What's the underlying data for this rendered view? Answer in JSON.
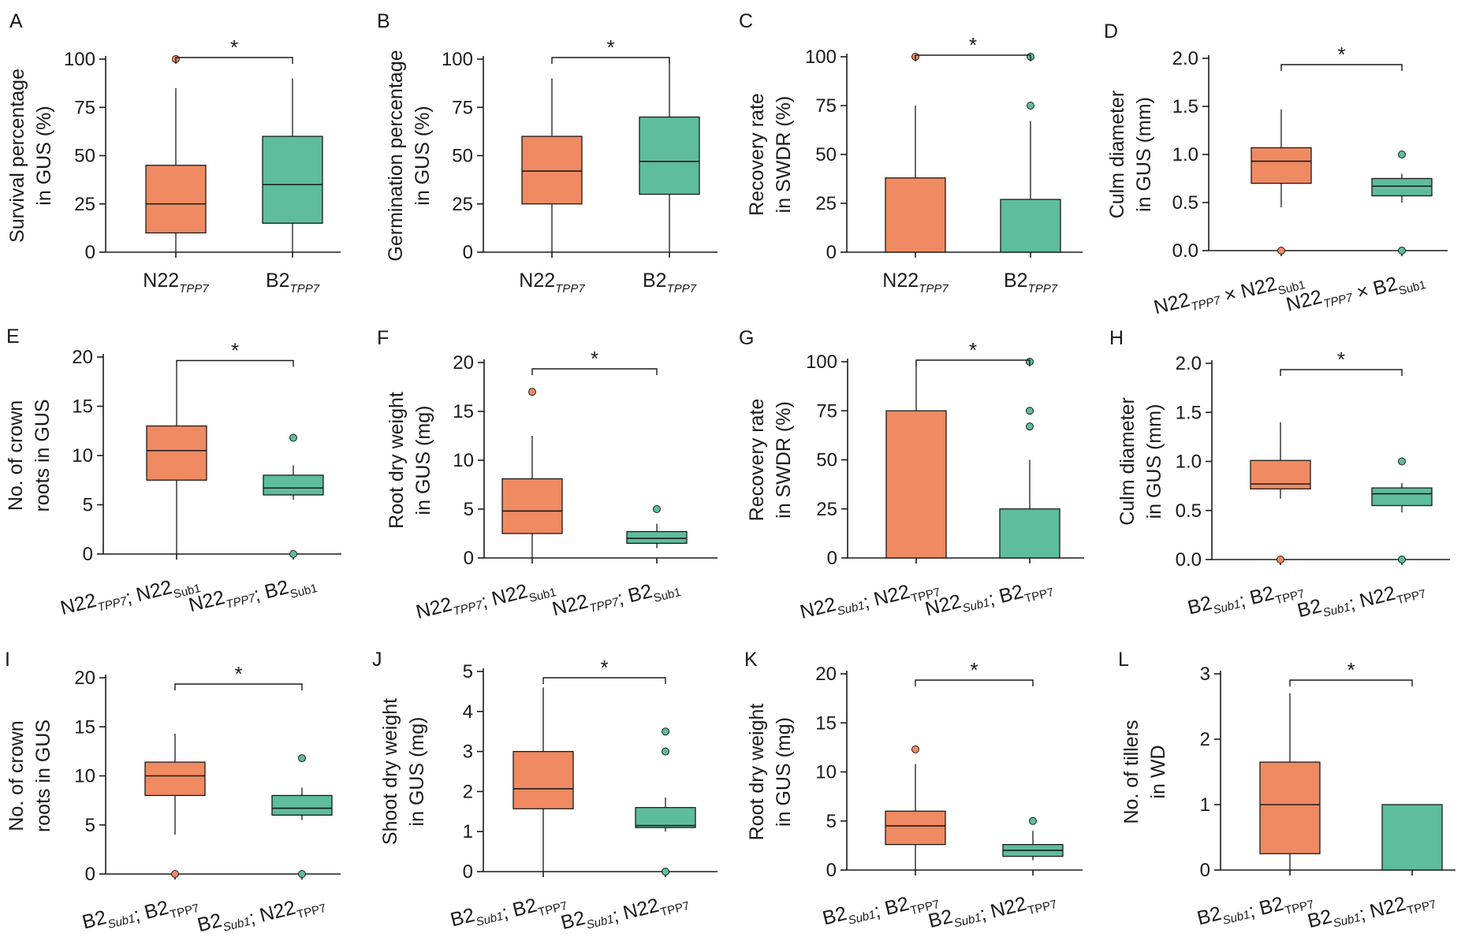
{
  "colors": {
    "group1": "#ef8a62",
    "group2": "#5ebd9c"
  },
  "chart_data": [
    {
      "label": "A",
      "type": "box",
      "ylabel": [
        "Survival percentage",
        "in GUS (%)"
      ],
      "ylim": [
        0,
        100
      ],
      "yticks": [
        0,
        25,
        50,
        75,
        100
      ],
      "tick_format": "int",
      "categories": [
        [
          {
            "t": "N22"
          },
          {
            "t": "TPP7",
            "s": "sub",
            "i": true
          }
        ],
        [
          {
            "t": "B2"
          },
          {
            "t": "TPP7",
            "s": "sub",
            "i": true
          }
        ]
      ],
      "rotate_labels": false,
      "significance": "*",
      "boxes": [
        {
          "whislo": 0,
          "q1": 10,
          "med": 25,
          "q3": 45,
          "whishi": 85,
          "fliers": [
            100
          ]
        },
        {
          "whislo": 0,
          "q1": 15,
          "med": 35,
          "q3": 60,
          "whishi": 90,
          "fliers": []
        }
      ]
    },
    {
      "label": "B",
      "type": "box",
      "ylabel": [
        "Germination percentage",
        "in GUS (%)"
      ],
      "ylim": [
        0,
        100
      ],
      "yticks": [
        0,
        25,
        50,
        75,
        100
      ],
      "tick_format": "int",
      "categories": [
        [
          {
            "t": "N22"
          },
          {
            "t": "TPP7",
            "s": "sub",
            "i": true
          }
        ],
        [
          {
            "t": "B2"
          },
          {
            "t": "TPP7",
            "s": "sub",
            "i": true
          }
        ]
      ],
      "rotate_labels": false,
      "significance": "*",
      "boxes": [
        {
          "whislo": 0,
          "q1": 25,
          "med": 42,
          "q3": 60,
          "whishi": 90,
          "fliers": []
        },
        {
          "whislo": 0,
          "q1": 30,
          "med": 47,
          "q3": 70,
          "whishi": 100,
          "fliers": []
        }
      ]
    },
    {
      "label": "C",
      "type": "box",
      "ylabel": [
        "Recovery rate",
        "in SWDR (%)"
      ],
      "ylim": [
        0,
        100
      ],
      "yticks": [
        0,
        25,
        50,
        75,
        100
      ],
      "tick_format": "int",
      "categories": [
        [
          {
            "t": "N22"
          },
          {
            "t": "TPP7",
            "s": "sub",
            "i": true
          }
        ],
        [
          {
            "t": "B2"
          },
          {
            "t": "TPP7",
            "s": "sub",
            "i": true
          }
        ]
      ],
      "rotate_labels": false,
      "significance": "*",
      "boxes": [
        {
          "whislo": 0,
          "q1": 0,
          "med": 0,
          "q3": 38,
          "whishi": 75,
          "fliers": [
            100
          ]
        },
        {
          "whislo": 0,
          "q1": 0,
          "med": 0,
          "q3": 27,
          "whishi": 67,
          "fliers": [
            75,
            100
          ]
        }
      ]
    },
    {
      "label": "D",
      "type": "box",
      "ylabel": [
        "Culm diameter",
        "in GUS (mm)"
      ],
      "ylim": [
        0,
        2
      ],
      "yticks": [
        0,
        0.5,
        1.0,
        1.5,
        2.0
      ],
      "tick_format": "one",
      "categories": [
        [
          {
            "t": "N22"
          },
          {
            "t": "TPP7",
            "s": "sub",
            "i": true
          },
          {
            "t": " × N22"
          },
          {
            "t": "Sub1",
            "s": "sub",
            "i": false
          }
        ],
        [
          {
            "t": "N22"
          },
          {
            "t": "TPP7",
            "s": "sub",
            "i": true
          },
          {
            "t": " × B2"
          },
          {
            "t": "Sub1",
            "s": "sub",
            "i": false
          }
        ]
      ],
      "rotate_labels": true,
      "significance": "*",
      "boxes": [
        {
          "whislo": 0.45,
          "q1": 0.7,
          "med": 0.93,
          "q3": 1.07,
          "whishi": 1.47,
          "fliers": [
            0
          ]
        },
        {
          "whislo": 0.5,
          "q1": 0.57,
          "med": 0.67,
          "q3": 0.75,
          "whishi": 0.8,
          "fliers": [
            0,
            1.0
          ]
        }
      ]
    },
    {
      "label": "E",
      "type": "box",
      "ylabel": [
        "No. of crown",
        "roots in GUS"
      ],
      "ylim": [
        0,
        20
      ],
      "yticks": [
        0,
        5,
        10,
        15,
        20
      ],
      "tick_format": "int",
      "categories": [
        [
          {
            "t": "N22"
          },
          {
            "t": "TPP7",
            "s": "sub",
            "i": true
          },
          {
            "t": "; N22"
          },
          {
            "t": "Sub1",
            "s": "sub",
            "i": false
          }
        ],
        [
          {
            "t": "N22"
          },
          {
            "t": "TPP7",
            "s": "sub",
            "i": true
          },
          {
            "t": "; B2"
          },
          {
            "t": "Sub1",
            "s": "sub",
            "i": false
          }
        ]
      ],
      "rotate_labels": true,
      "significance": "*",
      "boxes": [
        {
          "whislo": 0,
          "q1": 7.5,
          "med": 10.5,
          "q3": 13,
          "whishi": 19,
          "fliers": []
        },
        {
          "whislo": 5.5,
          "q1": 6,
          "med": 6.7,
          "q3": 8,
          "whishi": 9,
          "fliers": [
            0,
            11.8
          ]
        }
      ]
    },
    {
      "label": "F",
      "type": "box",
      "ylabel": [
        "Root dry weight",
        "in GUS (mg)"
      ],
      "ylim": [
        0,
        20
      ],
      "yticks": [
        0,
        5,
        10,
        15,
        20
      ],
      "tick_format": "int",
      "categories": [
        [
          {
            "t": "N22"
          },
          {
            "t": "TPP7",
            "s": "sub",
            "i": true
          },
          {
            "t": "; N22"
          },
          {
            "t": "Sub1",
            "s": "sub",
            "i": false
          }
        ],
        [
          {
            "t": "N22"
          },
          {
            "t": "TPP7",
            "s": "sub",
            "i": true
          },
          {
            "t": "; B2"
          },
          {
            "t": "Sub1",
            "s": "sub",
            "i": false
          }
        ]
      ],
      "rotate_labels": true,
      "significance": "*",
      "boxes": [
        {
          "whislo": 0,
          "q1": 2.5,
          "med": 4.8,
          "q3": 8.1,
          "whishi": 12.5,
          "fliers": [
            17
          ]
        },
        {
          "whislo": 1,
          "q1": 1.5,
          "med": 2,
          "q3": 2.7,
          "whishi": 3.5,
          "fliers": [
            5
          ]
        }
      ]
    },
    {
      "label": "G",
      "type": "box",
      "ylabel": [
        "Recovery rate",
        "in SWDR (%)"
      ],
      "ylim": [
        0,
        100
      ],
      "yticks": [
        0,
        25,
        50,
        75,
        100
      ],
      "tick_format": "int",
      "categories": [
        [
          {
            "t": "N22"
          },
          {
            "t": "Sub1",
            "s": "sub",
            "i": true
          },
          {
            "t": "; N22"
          },
          {
            "t": "TPP7",
            "s": "sub",
            "i": false
          }
        ],
        [
          {
            "t": "N22"
          },
          {
            "t": "Sub1",
            "s": "sub",
            "i": true
          },
          {
            "t": "; B2"
          },
          {
            "t": "TPP7",
            "s": "sub",
            "i": false
          }
        ]
      ],
      "rotate_labels": true,
      "significance": "*",
      "boxes": [
        {
          "whislo": 0,
          "q1": 0,
          "med": 0,
          "q3": 75,
          "whishi": 100,
          "fliers": []
        },
        {
          "whislo": 0,
          "q1": 0,
          "med": 0,
          "q3": 25,
          "whishi": 50,
          "fliers": [
            67,
            75,
            100
          ]
        }
      ]
    },
    {
      "label": "H",
      "type": "box",
      "ylabel": [
        "Culm diameter",
        "in GUS (mm)"
      ],
      "ylim": [
        0,
        2
      ],
      "yticks": [
        0,
        0.5,
        1.0,
        1.5,
        2.0
      ],
      "tick_format": "one",
      "categories": [
        [
          {
            "t": "B2"
          },
          {
            "t": "Sub1",
            "s": "sub",
            "i": true
          },
          {
            "t": "; B2"
          },
          {
            "t": "TPP7",
            "s": "sub",
            "i": false
          }
        ],
        [
          {
            "t": "B2"
          },
          {
            "t": "Sub1",
            "s": "sub",
            "i": true
          },
          {
            "t": "; N22"
          },
          {
            "t": "TPP7",
            "s": "sub",
            "i": false
          }
        ]
      ],
      "rotate_labels": true,
      "significance": "*",
      "boxes": [
        {
          "whislo": 0.62,
          "q1": 0.72,
          "med": 0.77,
          "q3": 1.01,
          "whishi": 1.4,
          "fliers": [
            0
          ]
        },
        {
          "whislo": 0.48,
          "q1": 0.55,
          "med": 0.67,
          "q3": 0.73,
          "whishi": 0.78,
          "fliers": [
            0,
            1.0
          ]
        }
      ]
    },
    {
      "label": "I",
      "type": "box",
      "ylabel": [
        "No. of crown",
        "roots in GUS"
      ],
      "ylim": [
        0,
        20
      ],
      "yticks": [
        0,
        5,
        10,
        15,
        20
      ],
      "tick_format": "int",
      "categories": [
        [
          {
            "t": "B2"
          },
          {
            "t": "Sub1",
            "s": "sub",
            "i": true
          },
          {
            "t": "; B2"
          },
          {
            "t": "TPP7",
            "s": "sub",
            "i": false
          }
        ],
        [
          {
            "t": "B2"
          },
          {
            "t": "Sub1",
            "s": "sub",
            "i": true
          },
          {
            "t": "; N22"
          },
          {
            "t": "TPP7",
            "s": "sub",
            "i": false
          }
        ]
      ],
      "rotate_labels": true,
      "significance": "*",
      "boxes": [
        {
          "whislo": 4,
          "q1": 8,
          "med": 10,
          "q3": 11.4,
          "whishi": 14.3,
          "fliers": [
            0
          ]
        },
        {
          "whislo": 5.5,
          "q1": 6,
          "med": 6.7,
          "q3": 8,
          "whishi": 8.8,
          "fliers": [
            0,
            11.8
          ]
        }
      ]
    },
    {
      "label": "J",
      "type": "box",
      "ylabel": [
        "Shoot dry weight",
        "in GUS (mg)"
      ],
      "ylim": [
        0,
        5
      ],
      "yticks": [
        0,
        1,
        2,
        3,
        4,
        5
      ],
      "tick_format": "int",
      "categories": [
        [
          {
            "t": "B2"
          },
          {
            "t": "Sub1",
            "s": "sub",
            "i": true
          },
          {
            "t": "; B2"
          },
          {
            "t": "TPP7",
            "s": "sub",
            "i": false
          }
        ],
        [
          {
            "t": "B2"
          },
          {
            "t": "Sub1",
            "s": "sub",
            "i": true
          },
          {
            "t": "; N22"
          },
          {
            "t": "TPP7",
            "s": "sub",
            "i": false
          }
        ]
      ],
      "rotate_labels": true,
      "significance": "*",
      "boxes": [
        {
          "whislo": 0,
          "q1": 1.57,
          "med": 2.07,
          "q3": 3,
          "whishi": 4.6,
          "fliers": []
        },
        {
          "whislo": 1,
          "q1": 1.1,
          "med": 1.15,
          "q3": 1.6,
          "whishi": 1.85,
          "fliers": [
            0,
            3,
            3.5
          ]
        }
      ]
    },
    {
      "label": "K",
      "type": "box",
      "ylabel": [
        "Root dry weight",
        "in GUS (mg)"
      ],
      "ylim": [
        0,
        20
      ],
      "yticks": [
        0,
        5,
        10,
        15,
        20
      ],
      "tick_format": "int",
      "categories": [
        [
          {
            "t": "B2"
          },
          {
            "t": "Sub1",
            "s": "sub",
            "i": true
          },
          {
            "t": "; B2"
          },
          {
            "t": "TPP7",
            "s": "sub",
            "i": false
          }
        ],
        [
          {
            "t": "B2"
          },
          {
            "t": "Sub1",
            "s": "sub",
            "i": true
          },
          {
            "t": "; N22"
          },
          {
            "t": "TPP7",
            "s": "sub",
            "i": false
          }
        ]
      ],
      "rotate_labels": true,
      "significance": "*",
      "boxes": [
        {
          "whislo": 0,
          "q1": 2.6,
          "med": 4.5,
          "q3": 6,
          "whishi": 10.8,
          "fliers": [
            12.3
          ]
        },
        {
          "whislo": 1,
          "q1": 1.4,
          "med": 2,
          "q3": 2.6,
          "whishi": 4,
          "fliers": [
            5
          ]
        }
      ]
    },
    {
      "label": "L",
      "type": "box",
      "ylabel": [
        "No. of tillers",
        "in WD"
      ],
      "ylim": [
        0,
        3
      ],
      "yticks": [
        0,
        1,
        2,
        3
      ],
      "tick_format": "int",
      "categories": [
        [
          {
            "t": "B2"
          },
          {
            "t": "Sub1",
            "s": "sub",
            "i": true
          },
          {
            "t": "; B2"
          },
          {
            "t": "TPP7",
            "s": "sub",
            "i": false
          }
        ],
        [
          {
            "t": "B2"
          },
          {
            "t": "Sub1",
            "s": "sub",
            "i": true
          },
          {
            "t": "; N22"
          },
          {
            "t": "TPP7",
            "s": "sub",
            "i": false
          }
        ]
      ],
      "rotate_labels": true,
      "significance": "*",
      "boxes": [
        {
          "whislo": 0,
          "q1": 0.25,
          "med": 1,
          "q3": 1.65,
          "whishi": 2.7,
          "fliers": []
        },
        {
          "whislo": 0,
          "q1": 0,
          "med": 0,
          "q3": 1,
          "whishi": 1,
          "fliers": []
        }
      ]
    }
  ]
}
